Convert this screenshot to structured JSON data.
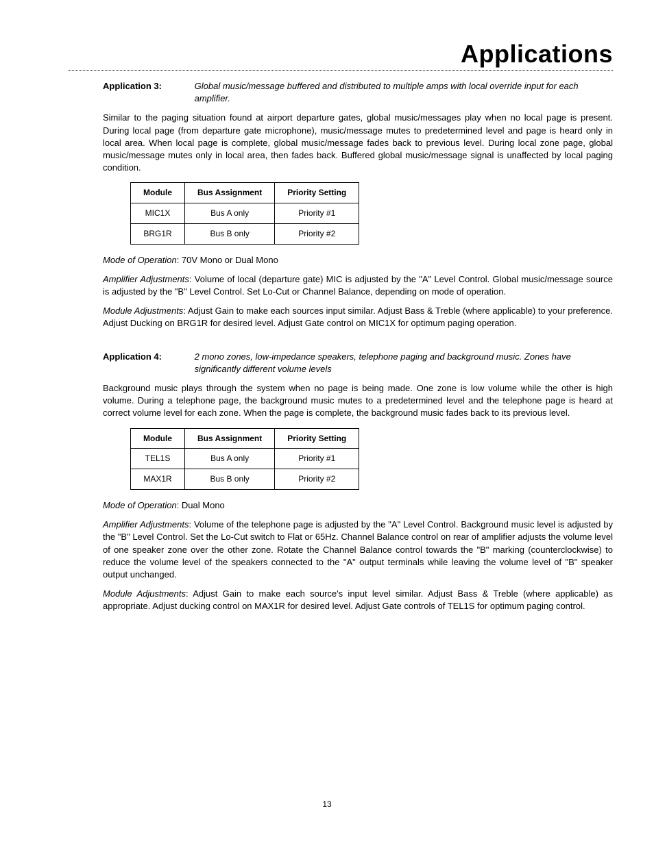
{
  "page": {
    "title": "Applications",
    "number": "13"
  },
  "app3": {
    "label": "Application 3:",
    "subtitle": "Global music/message buffered and distributed to multiple amps with local override input for each amplifier.",
    "intro": "Similar to the paging situation found at airport departure gates, global music/messages play when no local page is present. During local page (from departure gate microphone), music/message mutes to predetermined level and page is heard only in local area.  When local page is complete, global music/message fades back to previous level. During local zone page, global music/message mutes only in local area, then fades back. Buffered global music/message signal is unaffected by local paging condition.",
    "table": {
      "headers": [
        "Module",
        "Bus Assignment",
        "Priority Setting"
      ],
      "rows": [
        [
          "MIC1X",
          "Bus A only",
          "Priority #1"
        ],
        [
          "BRG1R",
          "Bus B only",
          "Priority #2"
        ]
      ]
    },
    "mode_label": "Mode of Operation",
    "mode_text": ": 70V Mono or Dual Mono",
    "amp_label": "Amplifier Adjustments",
    "amp_text": ": Volume of local (departure gate) MIC is adjusted by the \"A\" Level Control. Global music/message source is adjusted by the \"B\" Level Control. Set Lo-Cut or Channel Balance, depending on mode of operation.",
    "mod_label": "Module Adjustments",
    "mod_text": ": Adjust Gain to make each sources input similar.  Adjust Bass & Treble (where applicable) to your preference. Adjust Ducking on BRG1R for desired level.  Adjust Gate control on MIC1X for optimum paging operation."
  },
  "app4": {
    "label": "Application 4:",
    "subtitle": "2 mono zones, low-impedance speakers, telephone paging and background music. Zones have significantly different volume levels",
    "intro": "Background music plays through the system when no page is being made. One zone is low volume while the other is high volume. During a telephone page, the background music mutes to a predetermined level and the telephone page is heard at correct volume level for each zone. When the page is complete, the background music fades back to its previous level.",
    "table": {
      "headers": [
        "Module",
        "Bus Assignment",
        "Priority Setting"
      ],
      "rows": [
        [
          "TEL1S",
          "Bus A only",
          "Priority #1"
        ],
        [
          "MAX1R",
          "Bus B only",
          "Priority #2"
        ]
      ]
    },
    "mode_label": "Mode of Operation",
    "mode_text": ": Dual Mono",
    "amp_label": "Amplifier Adjustments",
    "amp_text": ":  Volume of the telephone page is adjusted by the \"A\" Level Control. Background music level is adjusted by the \"B\" Level Control. Set the Lo-Cut switch to Flat or 65Hz. Channel Balance control on rear of amplifier adjusts the volume level of one speaker zone over the other zone. Rotate the Channel Balance control towards the \"B\" marking (counterclockwise) to reduce the volume level of the speakers connected to the \"A\" output terminals while leaving the volume level of \"B\" speaker output unchanged.",
    "mod_label": "Module Adjustments",
    "mod_text": ":  Adjust Gain to make each source's input level similar. Adjust Bass & Treble (where applicable) as appropriate. Adjust ducking control on MAX1R for desired level.  Adjust Gate controls of TEL1S for optimum paging control."
  }
}
